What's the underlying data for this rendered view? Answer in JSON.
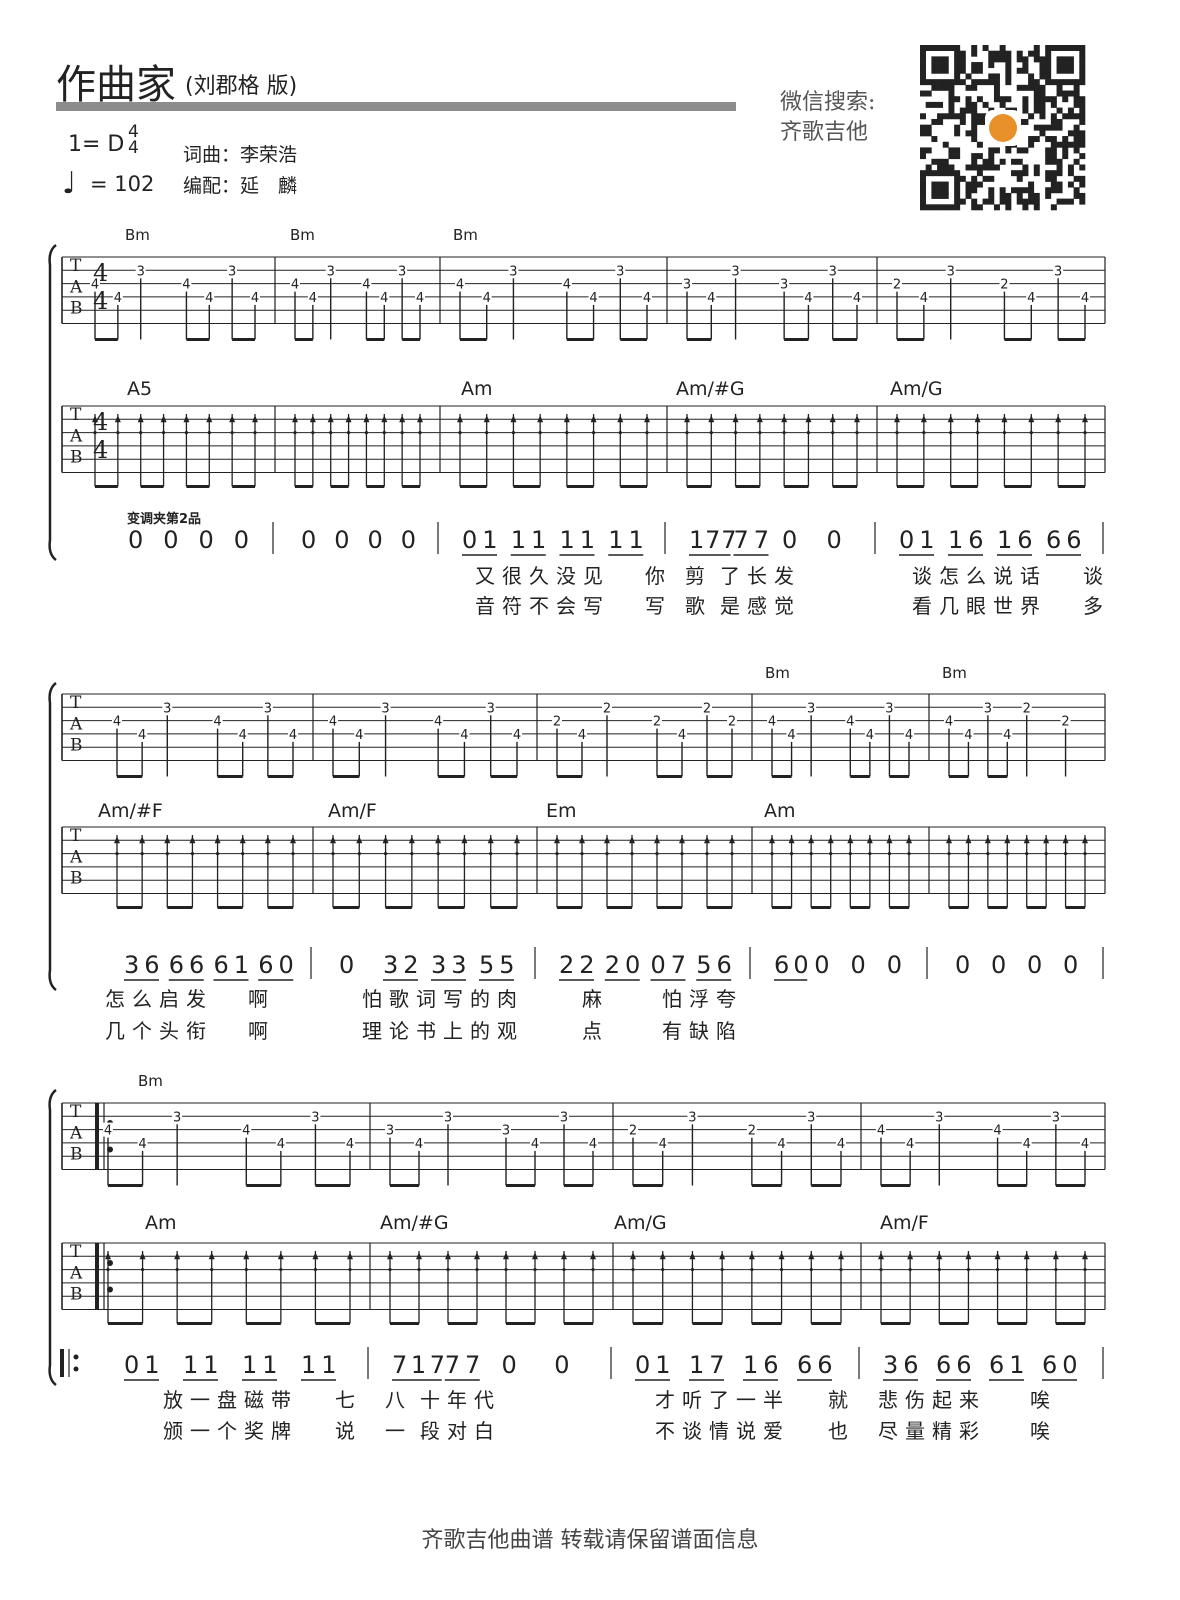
{
  "header": {
    "title": "作曲家",
    "subtitle": "(刘郡格 版)",
    "key": "1= D",
    "time_signature": {
      "top": "4",
      "bottom": "4"
    },
    "tempo_note": "♩",
    "tempo": "= 102",
    "lyricist_composer": "词曲：李荣浩",
    "arranger": "编配：延　麟",
    "wechat_label": "微信搜索:",
    "wechat_name": "齐歌吉他"
  },
  "capo_text": "变调夹第2品",
  "tab_letters": [
    "T",
    "A",
    "B"
  ],
  "footer": "齐歌吉他曲谱 转载请保留谱面信息",
  "colors": {
    "ink": "#222222",
    "title_bar": "#8c8c8c",
    "qr_logo": "#e8902a"
  },
  "systems": [
    {
      "tab_chords": [
        "Bm",
        "Bm",
        "Bm",
        "",
        ""
      ],
      "strum_chords": [
        "A5",
        "",
        "Am",
        "Am/#G",
        "Am/G"
      ],
      "tab": [
        [
          [
            3,
            4,
            0
          ],
          [
            4,
            4,
            0.5
          ],
          [
            2,
            3,
            1
          ],
          [
            3,
            4,
            2
          ],
          [
            4,
            4,
            2.5
          ],
          [
            2,
            3,
            3
          ],
          [
            4,
            4,
            3.5
          ]
        ],
        [
          [
            3,
            4,
            0
          ],
          [
            4,
            4,
            0.5
          ],
          [
            2,
            3,
            1
          ],
          [
            3,
            4,
            2
          ],
          [
            4,
            4,
            2.5
          ],
          [
            2,
            3,
            3
          ],
          [
            4,
            4,
            3.5
          ]
        ],
        [
          [
            3,
            4,
            0
          ],
          [
            4,
            4,
            0.5
          ],
          [
            2,
            3,
            1
          ],
          [
            3,
            4,
            2
          ],
          [
            4,
            4,
            2.5
          ],
          [
            2,
            3,
            3
          ],
          [
            4,
            4,
            3.5
          ]
        ],
        [
          [
            3,
            3,
            0
          ],
          [
            4,
            4,
            0.5
          ],
          [
            2,
            3,
            1
          ],
          [
            3,
            3,
            2
          ],
          [
            4,
            4,
            2.5
          ],
          [
            2,
            3,
            3
          ],
          [
            4,
            4,
            3.5
          ]
        ],
        [
          [
            3,
            2,
            0
          ],
          [
            4,
            4,
            0.5
          ],
          [
            2,
            3,
            1
          ],
          [
            3,
            2,
            2
          ],
          [
            4,
            4,
            2.5
          ],
          [
            2,
            3,
            3
          ],
          [
            4,
            4,
            3.5
          ]
        ]
      ],
      "jianpu": [
        [
          "0",
          "0",
          "0",
          "0"
        ],
        [
          "0",
          "0",
          "0",
          "0"
        ],
        [
          "01",
          "11",
          "11",
          "11"
        ],
        [
          "177",
          "77",
          "0",
          "0"
        ],
        [
          "01",
          "16",
          "16",
          "66"
        ]
      ],
      "lyrics": [
        [
          "又很久没见",
          "你",
          "剪",
          "了长发",
          "谈怎么说话",
          "谈"
        ],
        [
          "音符不会写",
          "写",
          "歌",
          "是感觉",
          "看几眼世界",
          "多"
        ]
      ]
    },
    {
      "tab_chords": [
        "",
        "",
        "",
        "Bm",
        "Bm"
      ],
      "strum_chords": [
        "Am/#F",
        "Am/F",
        "Em",
        "Am",
        ""
      ],
      "tab": [
        [
          [
            3,
            4,
            0
          ],
          [
            4,
            4,
            0.5
          ],
          [
            2,
            3,
            1
          ],
          [
            3,
            4,
            2
          ],
          [
            4,
            4,
            2.5
          ],
          [
            2,
            3,
            3
          ],
          [
            4,
            4,
            3.5
          ]
        ],
        [
          [
            3,
            4,
            0
          ],
          [
            4,
            4,
            0.5
          ],
          [
            2,
            3,
            1
          ],
          [
            3,
            4,
            2
          ],
          [
            4,
            4,
            2.5
          ],
          [
            2,
            3,
            3
          ],
          [
            4,
            4,
            3.5
          ]
        ],
        [
          [
            3,
            2,
            0
          ],
          [
            4,
            4,
            0.5
          ],
          [
            2,
            2,
            1
          ],
          [
            3,
            2,
            2
          ],
          [
            4,
            4,
            2.5
          ],
          [
            2,
            2,
            3
          ],
          [
            3,
            2,
            3.5
          ]
        ],
        [
          [
            3,
            4,
            0
          ],
          [
            4,
            4,
            0.5
          ],
          [
            2,
            3,
            1
          ],
          [
            3,
            4,
            2
          ],
          [
            4,
            4,
            2.5
          ],
          [
            2,
            3,
            3
          ],
          [
            4,
            4,
            3.5
          ]
        ],
        [
          [
            3,
            4,
            0
          ],
          [
            4,
            4,
            0.5
          ],
          [
            2,
            3,
            1
          ],
          [
            4,
            4,
            1.5
          ],
          [
            2,
            2,
            2
          ],
          [
            3,
            2,
            3
          ]
        ]
      ],
      "jianpu": [
        [
          "36",
          "66",
          "61",
          "60"
        ],
        [
          "0",
          "32",
          "33",
          "55"
        ],
        [
          "22",
          "20",
          "07",
          "56"
        ],
        [
          "60",
          "0",
          "0",
          "0"
        ],
        [
          "0",
          "0",
          "0",
          "0"
        ]
      ],
      "lyrics": [
        [
          "怎么启发",
          "啊",
          "怕歌词写的肉",
          "麻",
          "怕浮夸"
        ],
        [
          "几个头衔",
          "啊",
          "理论书上的观",
          "点",
          "有缺陷"
        ]
      ]
    },
    {
      "tab_chords": [
        "Bm",
        "",
        "",
        ""
      ],
      "strum_chords": [
        "Am",
        "Am/#G",
        "Am/G",
        "Am/F"
      ],
      "tab": [
        [
          [
            3,
            4,
            0
          ],
          [
            4,
            4,
            0.5
          ],
          [
            2,
            3,
            1
          ],
          [
            3,
            4,
            2
          ],
          [
            4,
            4,
            2.5
          ],
          [
            2,
            3,
            3
          ],
          [
            4,
            4,
            3.5
          ]
        ],
        [
          [
            3,
            3,
            0
          ],
          [
            4,
            4,
            0.5
          ],
          [
            2,
            3,
            1
          ],
          [
            3,
            3,
            2
          ],
          [
            4,
            4,
            2.5
          ],
          [
            2,
            3,
            3
          ],
          [
            4,
            4,
            3.5
          ]
        ],
        [
          [
            3,
            2,
            0
          ],
          [
            4,
            4,
            0.5
          ],
          [
            2,
            3,
            1
          ],
          [
            3,
            2,
            2
          ],
          [
            4,
            4,
            2.5
          ],
          [
            2,
            3,
            3
          ],
          [
            4,
            4,
            3.5
          ]
        ],
        [
          [
            3,
            4,
            0
          ],
          [
            4,
            4,
            0.5
          ],
          [
            2,
            3,
            1
          ],
          [
            3,
            4,
            2
          ],
          [
            4,
            4,
            2.5
          ],
          [
            2,
            3,
            3
          ],
          [
            4,
            4,
            3.5
          ]
        ]
      ],
      "jianpu": [
        [
          "01",
          "11",
          "11",
          "11"
        ],
        [
          "717",
          "77",
          "0",
          "0"
        ],
        [
          "01",
          "17",
          "16",
          "66"
        ],
        [
          "36",
          "66",
          "61",
          "60"
        ]
      ],
      "lyrics": [
        [
          "放一盘磁带",
          "七",
          "八",
          "十年代",
          "才听了一半",
          "就",
          "悲伤起来",
          "唉"
        ],
        [
          "颁一个奖牌",
          "说",
          "一",
          "段对白",
          "不谈情说爱",
          "也",
          "尽量精彩",
          "唉"
        ]
      ]
    }
  ]
}
